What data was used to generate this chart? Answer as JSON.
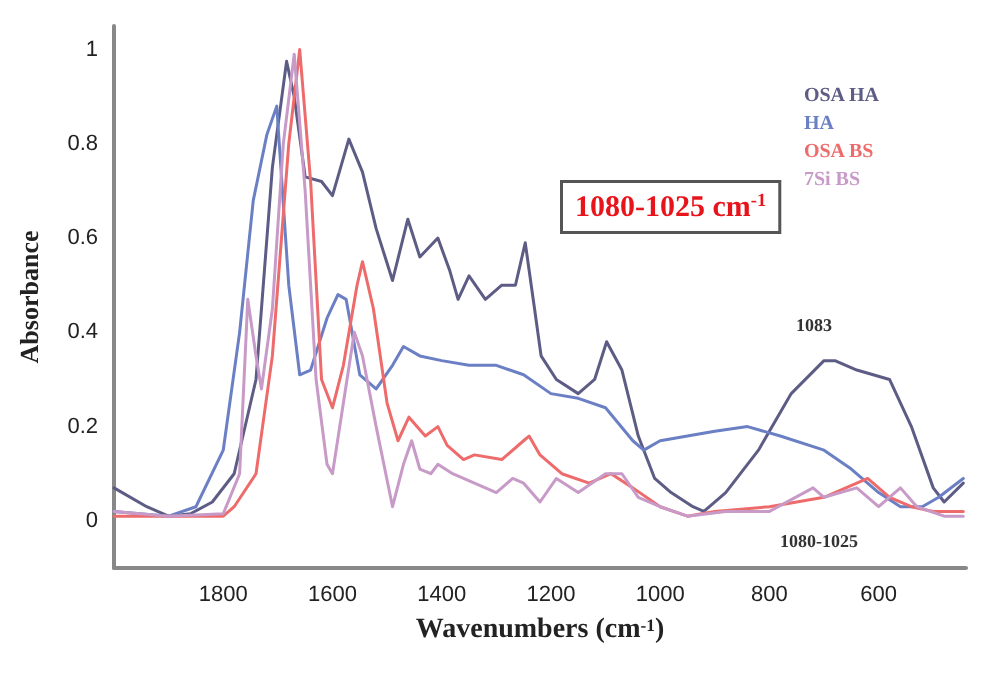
{
  "chart_data": {
    "type": "line",
    "xlabel": "Wavenumbers (cm$^{-1}$)",
    "ylabel": "Absorbance",
    "xlim": [
      2000,
      440
    ],
    "xticks": [
      1800,
      1600,
      1400,
      1200,
      1000,
      800,
      600
    ],
    "ylim": [
      -0.1,
      1.05
    ],
    "yticks": [
      0,
      0.2,
      0.4,
      0.6,
      0.8,
      1
    ],
    "grid": false,
    "legend": "top right",
    "marker": "none",
    "line_style": "solid",
    "annotations": [
      "1080-1025 cm$^{-1}$",
      "1083",
      "1080-1025"
    ],
    "series": [
      {
        "name": "OSA HA",
        "color": "#5c5c85",
        "x": [
          2000,
          1940,
          1900,
          1860,
          1820,
          1780,
          1740,
          1710,
          1684,
          1670,
          1650,
          1620,
          1600,
          1570,
          1545,
          1520,
          1490,
          1462,
          1440,
          1407,
          1385,
          1370,
          1350,
          1320,
          1290,
          1265,
          1247,
          1230,
          1218,
          1190,
          1150,
          1120,
          1098,
          1070,
          1040,
          1010,
          980,
          940,
          920,
          880,
          820,
          760,
          700,
          680,
          640,
          580,
          540,
          500,
          480,
          445
        ],
        "values": [
          0.07,
          0.03,
          0.01,
          0.015,
          0.04,
          0.1,
          0.3,
          0.75,
          0.975,
          0.9,
          0.73,
          0.72,
          0.69,
          0.81,
          0.74,
          0.62,
          0.51,
          0.64,
          0.56,
          0.6,
          0.53,
          0.47,
          0.52,
          0.47,
          0.5,
          0.5,
          0.59,
          0.45,
          0.35,
          0.3,
          0.27,
          0.3,
          0.38,
          0.32,
          0.18,
          0.09,
          0.06,
          0.03,
          0.02,
          0.06,
          0.15,
          0.27,
          0.34,
          0.34,
          0.32,
          0.3,
          0.2,
          0.07,
          0.04,
          0.08
        ]
      },
      {
        "name": "HA",
        "color": "#6b7fc4",
        "x": [
          2000,
          1900,
          1850,
          1800,
          1770,
          1745,
          1720,
          1702,
          1680,
          1660,
          1640,
          1610,
          1590,
          1575,
          1550,
          1520,
          1490,
          1470,
          1440,
          1400,
          1350,
          1300,
          1250,
          1200,
          1150,
          1100,
          1050,
          1030,
          1000,
          900,
          840,
          780,
          700,
          650,
          600,
          560,
          520,
          490,
          445
        ],
        "values": [
          0.02,
          0.01,
          0.03,
          0.15,
          0.4,
          0.68,
          0.82,
          0.88,
          0.5,
          0.31,
          0.32,
          0.43,
          0.48,
          0.47,
          0.31,
          0.28,
          0.33,
          0.37,
          0.35,
          0.34,
          0.33,
          0.33,
          0.31,
          0.27,
          0.26,
          0.24,
          0.17,
          0.15,
          0.17,
          0.19,
          0.2,
          0.18,
          0.15,
          0.11,
          0.06,
          0.03,
          0.03,
          0.05,
          0.09
        ]
      },
      {
        "name": "OSA BS",
        "color": "#ee6b6b",
        "x": [
          2000,
          1900,
          1800,
          1780,
          1740,
          1710,
          1680,
          1660,
          1640,
          1620,
          1600,
          1580,
          1555,
          1545,
          1525,
          1500,
          1480,
          1460,
          1430,
          1407,
          1390,
          1360,
          1340,
          1290,
          1250,
          1240,
          1220,
          1180,
          1130,
          1090,
          1050,
          1000,
          950,
          900,
          800,
          700,
          620,
          580,
          540,
          500,
          445
        ],
        "values": [
          0.01,
          0.01,
          0.01,
          0.03,
          0.1,
          0.35,
          0.8,
          1.0,
          0.72,
          0.3,
          0.24,
          0.33,
          0.5,
          0.55,
          0.45,
          0.25,
          0.17,
          0.22,
          0.18,
          0.2,
          0.16,
          0.13,
          0.14,
          0.13,
          0.17,
          0.18,
          0.14,
          0.1,
          0.08,
          0.1,
          0.07,
          0.03,
          0.01,
          0.02,
          0.03,
          0.05,
          0.09,
          0.05,
          0.03,
          0.02,
          0.02
        ]
      },
      {
        "name": "7Si BS",
        "color": "#c79ac8",
        "x": [
          2000,
          1900,
          1800,
          1770,
          1755,
          1740,
          1730,
          1710,
          1690,
          1670,
          1650,
          1630,
          1610,
          1600,
          1580,
          1560,
          1545,
          1520,
          1490,
          1470,
          1455,
          1440,
          1420,
          1407,
          1380,
          1340,
          1300,
          1270,
          1250,
          1220,
          1190,
          1150,
          1100,
          1070,
          1040,
          1000,
          950,
          880,
          800,
          720,
          700,
          640,
          600,
          560,
          530,
          480,
          445
        ],
        "values": [
          0.02,
          0.01,
          0.015,
          0.1,
          0.47,
          0.35,
          0.28,
          0.45,
          0.8,
          0.99,
          0.7,
          0.3,
          0.12,
          0.1,
          0.25,
          0.4,
          0.35,
          0.2,
          0.03,
          0.12,
          0.17,
          0.11,
          0.1,
          0.12,
          0.1,
          0.08,
          0.06,
          0.09,
          0.08,
          0.04,
          0.09,
          0.06,
          0.1,
          0.1,
          0.05,
          0.03,
          0.01,
          0.02,
          0.02,
          0.07,
          0.05,
          0.07,
          0.03,
          0.07,
          0.03,
          0.01,
          0.01
        ]
      }
    ]
  }
}
